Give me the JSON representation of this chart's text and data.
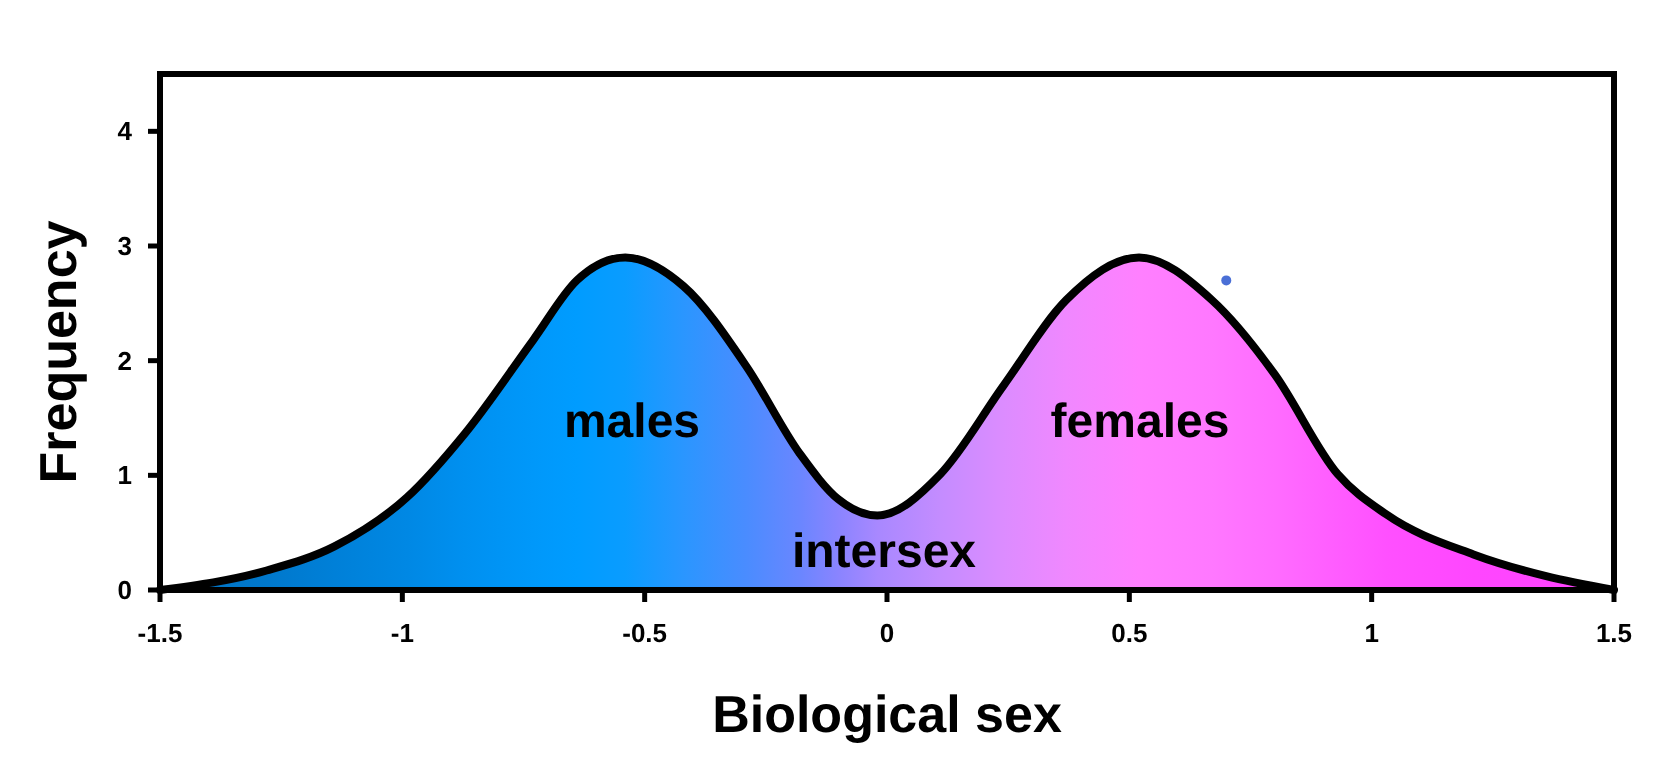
{
  "chart_data": {
    "type": "area",
    "xlabel": "Biological sex",
    "ylabel": "Frequency",
    "xlim": [
      -1.5,
      1.5
    ],
    "xticks": [
      -1.5,
      -1,
      -0.5,
      0,
      0.5,
      1,
      1.5
    ],
    "ylim": [
      0,
      4.5
    ],
    "yticks": [
      0,
      1,
      2,
      3,
      4
    ],
    "series": [
      {
        "color": "#000000",
        "x": [
          -1.5,
          -1.28,
          -1.14,
          -0.99,
          -0.87,
          -0.73,
          -0.64,
          -0.54,
          -0.42,
          -0.29,
          -0.18,
          -0.1,
          -0.02,
          0.11,
          0.24,
          0.37,
          0.52,
          0.67,
          0.8,
          0.93,
          1.03,
          1.21,
          1.36,
          1.5
        ],
        "values": [
          0,
          0.17,
          0.38,
          0.81,
          1.37,
          2.18,
          2.7,
          2.9,
          2.65,
          1.95,
          1.19,
          0.79,
          0.65,
          1.01,
          1.78,
          2.53,
          2.9,
          2.53,
          1.88,
          1.01,
          0.66,
          0.31,
          0.12,
          0
        ],
        "colors": [
          "#0070c0",
          "#0078cc",
          "#0080d8",
          "#0088e4",
          "#0090f0",
          "#0098fa",
          "#009cff",
          "#0a9cff",
          "#2a96ff",
          "#4a8cff",
          "#6a86ff",
          "#8a84ff",
          "#a888ff",
          "#c48cff",
          "#dc8cff",
          "#f088ff",
          "#ff80ff",
          "#ff78ff",
          "#ff6cff",
          "#ff5cff",
          "#ff50ff",
          "#ff46ff",
          "#ff44ff",
          "#ff44ff"
        ]
      },
      {
        "type": "scatter",
        "color": "#4a6fd6",
        "x": [
          0.7
        ],
        "values": [
          2.7
        ]
      }
    ],
    "annotations": [
      "males",
      "females",
      "intersex"
    ]
  }
}
